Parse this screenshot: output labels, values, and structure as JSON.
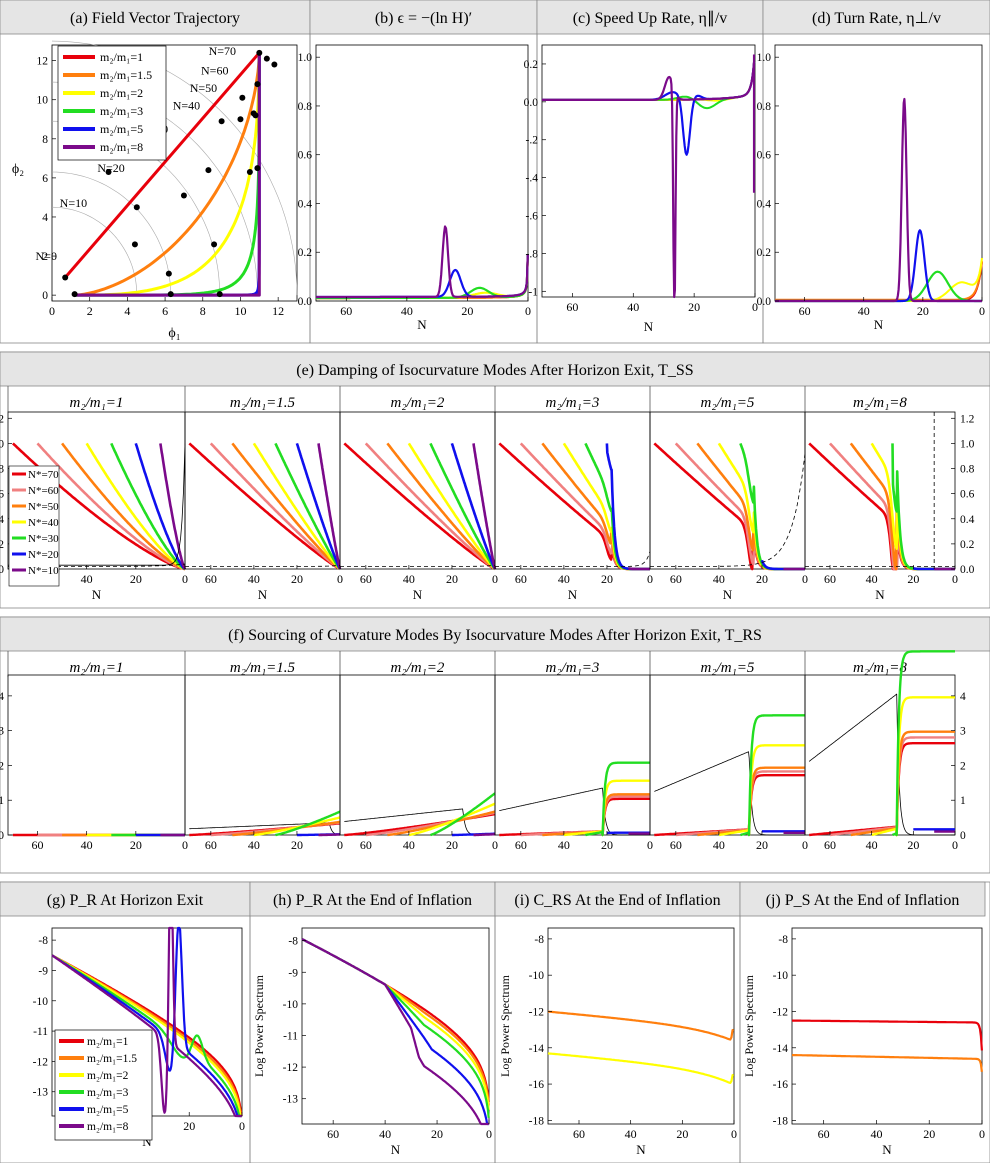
{
  "ratios": [
    "1",
    "1.5",
    "2",
    "3",
    "5",
    "8"
  ],
  "ratio_colors": [
    "#e8000b",
    "#ff7f0e",
    "#ffff00",
    "#22dd22",
    "#1010ee",
    "#7b0a8a"
  ],
  "nstar_labels": [
    "70",
    "60",
    "50",
    "40",
    "30",
    "20",
    "10"
  ],
  "nstar_colors": [
    "#e8000b",
    "#f08080",
    "#ff7f0e",
    "#ffff00",
    "#22dd22",
    "#1010ee",
    "#7b0a8a"
  ],
  "ratio_prefix": "m₂/m₁=",
  "nstar_prefix": "N*=",
  "row1": {
    "a": {
      "title": "(a)  Field Vector Trajectory",
      "xlabel": "ϕ₁",
      "ylabel": "ϕ₂",
      "xticks": [
        "0",
        "2",
        "4",
        "6",
        "8",
        "10",
        "12"
      ],
      "yticks": [
        "0",
        "2",
        "4",
        "6",
        "8",
        "10",
        "12"
      ],
      "n_labels": [
        "N=0",
        "N=10",
        "N=20",
        "N=30",
        "N=40",
        "N=50",
        "N=60",
        "N=70"
      ]
    },
    "b": {
      "title": "(b)  ϵ = −(ln H)′",
      "xlabel": "N",
      "xticks": [
        "60",
        "40",
        "20",
        "0"
      ],
      "yticks": [
        "0.0",
        "0.2",
        "0.4",
        "0.6",
        "0.8",
        "1.0"
      ]
    },
    "c": {
      "title": "(c)  Speed Up Rate, η∥/v",
      "xlabel": "N",
      "xticks": [
        "60",
        "40",
        "20",
        "0"
      ],
      "yticks": [
        "0.2",
        "0.0",
        "-.2",
        "-.4",
        "-.6",
        "-.8",
        "-1"
      ]
    },
    "d": {
      "title": "(d)  Turn Rate, η⊥/v",
      "xlabel": "N",
      "xticks": [
        "60",
        "40",
        "20",
        "0"
      ],
      "yticks": [
        "0.0",
        "0.2",
        "0.4",
        "0.6",
        "0.8",
        "1.0"
      ]
    }
  },
  "row2": {
    "title": "(e)  Damping of Isocurvature Modes After Horizon Exit,  T_SS",
    "xlabel": "N",
    "xticks": [
      "60",
      "40",
      "20",
      "0"
    ],
    "yticks": [
      "0.0",
      "0.2",
      "0.4",
      "0.6",
      "0.8",
      "1.0",
      "1.2"
    ]
  },
  "row3": {
    "title": "(f)  Sourcing of Curvature Modes By Isocurvature Modes After Horizon Exit,  T_RS",
    "xlabel": "N",
    "xticks": [
      "60",
      "40",
      "20",
      "0"
    ],
    "yticks": [
      "0",
      "1",
      "2",
      "3",
      "4"
    ]
  },
  "row4": {
    "g": {
      "title": "(g)  P_R At Horizon Exit",
      "xlabel": "N",
      "xticks": [
        "60",
        "40",
        "20",
        "0"
      ],
      "yticks": [
        "-8",
        "-9",
        "-10",
        "-11",
        "-12",
        "-13"
      ]
    },
    "h": {
      "title": "(h)  P_R At the End of Inflation",
      "xlabel": "N",
      "xticks": [
        "60",
        "40",
        "20",
        "0"
      ],
      "yticks": [
        "-8",
        "-9",
        "-10",
        "-11",
        "-12",
        "-13"
      ],
      "ylabel": "Log Power Spectrum"
    },
    "i": {
      "title": "(i)  C_RS At the End of Inflation",
      "xlabel": "N",
      "xticks": [
        "60",
        "40",
        "20",
        "0"
      ],
      "yticks": [
        "-8",
        "-10",
        "-12",
        "-14",
        "-16",
        "-18"
      ],
      "ylabel": "Log Power Spectrum"
    },
    "j": {
      "title": "(j)  P_S At the End of Inflation",
      "xlabel": "N",
      "xticks": [
        "60",
        "40",
        "20",
        "0"
      ],
      "yticks": [
        "-8",
        "-10",
        "-12",
        "-14",
        "-16",
        "-18"
      ],
      "ylabel": "Log Power Spectrum"
    }
  },
  "chart_data": [
    {
      "panel": "a",
      "type": "line",
      "title": "Field Vector Trajectory",
      "xlabel": "ϕ₁",
      "ylabel": "ϕ₂",
      "xlim": [
        0,
        13
      ],
      "ylim": [
        0,
        13
      ],
      "series": [
        {
          "name": "m2/m1=1",
          "x": [
            0.7,
            11.0
          ],
          "y": [
            0.9,
            12.4
          ]
        },
        {
          "name": "m2/m1=1.5",
          "x": [
            1.2,
            4,
            7,
            9.5,
            11.0
          ],
          "y": [
            0.05,
            1.3,
            4.2,
            8.2,
            12.4
          ]
        },
        {
          "name": "m2/m1=2",
          "x": [
            1.2,
            5,
            8,
            10,
            11.0
          ],
          "y": [
            0.02,
            0.6,
            2.8,
            7.0,
            12.4
          ]
        },
        {
          "name": "m2/m1=3",
          "x": [
            1.2,
            6,
            9,
            10.5,
            11.0
          ],
          "y": [
            0.0,
            0.15,
            1.5,
            6.5,
            12.4
          ]
        },
        {
          "name": "m2/m1=5",
          "x": [
            1.2,
            8,
            10.3,
            10.8,
            11.0
          ],
          "y": [
            0.0,
            0.02,
            0.8,
            7.0,
            12.4
          ]
        },
        {
          "name": "m2/m1=8",
          "x": [
            1.2,
            10,
            10.6,
            10.9,
            11.0
          ],
          "y": [
            0.0,
            0.02,
            0.5,
            7.0,
            12.4
          ]
        }
      ]
    },
    {
      "panel": "b",
      "type": "line",
      "title": "ϵ = −(ln H)′",
      "xlabel": "N",
      "xlim": [
        70,
        0
      ],
      "ylim": [
        0,
        1.05
      ],
      "series": [
        {
          "name": "m2/m1=1",
          "x": [
            70,
            30,
            10,
            3,
            1,
            0.2
          ],
          "y": [
            0.01,
            0.02,
            0.04,
            0.1,
            0.2,
            0.44
          ]
        },
        {
          "name": "m2/m1=8",
          "x": [
            70,
            32,
            28,
            26.5,
            24,
            10,
            0.2
          ],
          "y": [
            0.013,
            0.04,
            0.2,
            0.3,
            0.04,
            0.05,
            0.45
          ]
        }
      ]
    },
    {
      "panel": "c",
      "type": "line",
      "title": "Speed Up Rate",
      "xlabel": "N",
      "xlim": [
        70,
        0
      ],
      "ylim": [
        -1.03,
        0.3
      ],
      "series": [
        {
          "name": "m2/m1=5",
          "x": [
            70,
            30,
            25,
            22,
            18,
            5,
            1
          ],
          "y": [
            0.01,
            0.05,
            -0.02,
            -0.27,
            0.02,
            0.05,
            0.25
          ]
        },
        {
          "name": "m2/m1=8",
          "x": [
            70,
            28,
            27,
            26.5,
            26,
            20,
            1
          ],
          "y": [
            0.01,
            0.15,
            -0.5,
            -1.03,
            0.02,
            0.02,
            0.25
          ]
        }
      ]
    },
    {
      "panel": "d",
      "type": "line",
      "title": "Turn Rate",
      "xlabel": "N",
      "xlim": [
        70,
        0
      ],
      "ylim": [
        0,
        1.05
      ],
      "series": [
        {
          "name": "m2/m1=3",
          "x": [
            70,
            25,
            15,
            5
          ],
          "y": [
            0,
            0.01,
            0.12,
            0.01
          ]
        },
        {
          "name": "m2/m1=5",
          "x": [
            70,
            25,
            21,
            17
          ],
          "y": [
            0,
            0.02,
            0.29,
            0.02
          ]
        },
        {
          "name": "m2/m1=8",
          "x": [
            70,
            28,
            26,
            24
          ],
          "y": [
            0,
            0.02,
            0.83,
            0.02
          ]
        }
      ]
    },
    {
      "panel": "e",
      "type": "line",
      "title": "Damping of Isocurvature Modes After Horizon Exit, T_SS",
      "xlabel": "N",
      "xlim": [
        72,
        0
      ],
      "ylim": [
        0,
        1.25
      ],
      "subplots": [
        "m2/m1=1",
        "m2/m1=1.5",
        "m2/m1=2",
        "m2/m1=3",
        "m2/m1=5",
        "m2/m1=8"
      ],
      "series_by": "N*",
      "nstar": [
        70,
        60,
        50,
        40,
        30,
        20,
        10
      ],
      "start_value": 1.0
    },
    {
      "panel": "f",
      "type": "line",
      "title": "Sourcing of Curvature Modes By Isocurvature Modes After Horizon Exit, T_RS",
      "xlabel": "N",
      "xlim": [
        72,
        0
      ],
      "ylim": [
        0,
        4.6
      ],
      "subplots": [
        "m2/m1=1",
        "m2/m1=1.5",
        "m2/m1=2",
        "m2/m1=3",
        "m2/m1=5",
        "m2/m1=8"
      ],
      "final_values": {
        "m2/m1=1": 0.0,
        "m2/m1=1.5": 0.42,
        "m2/m1=2": 0.75,
        "m2/m1=3": 1.3,
        "m2/m1=5": 2.15,
        "m2/m1=8": 3.3
      },
      "black_peak": {
        "m2/m1=3": 1.35,
        "m2/m1=5": 2.4,
        "m2/m1=8": 4.05
      }
    },
    {
      "panel": "g",
      "type": "line",
      "title": "P_R At Horizon Exit",
      "xlabel": "N",
      "xlim": [
        72,
        0
      ],
      "ylim": [
        -13.8,
        -7.6
      ],
      "series": [
        {
          "name": "m2/m1=1",
          "x": [
            72,
            40,
            20,
            5,
            1
          ],
          "y": [
            -8.55,
            -9.2,
            -10.0,
            -11.5,
            -13.5
          ]
        },
        {
          "name": "m2/m1=8",
          "x": [
            72,
            35,
            29,
            27,
            24,
            10,
            4
          ],
          "y": [
            -8.7,
            -10.5,
            -12.4,
            -7.6,
            -11.3,
            -12.0,
            -13.7
          ]
        }
      ]
    },
    {
      "panel": "h",
      "type": "line",
      "title": "P_R At the End of Inflation",
      "xlabel": "N",
      "ylabel": "Log Power Spectrum",
      "xlim": [
        72,
        0
      ],
      "ylim": [
        -13.8,
        -7.6
      ],
      "series": [
        {
          "name": "m2/m1=1",
          "x": [
            72,
            40,
            10,
            1
          ],
          "y": [
            -8.45,
            -9.0,
            -10.5,
            -13.0
          ]
        },
        {
          "name": "m2/m1=8",
          "x": [
            72,
            35,
            27,
            10,
            1
          ],
          "y": [
            -8.45,
            -9.8,
            -10.8,
            -11.8,
            -13.5
          ]
        }
      ]
    },
    {
      "panel": "i",
      "type": "line",
      "title": "C_RS At the End of Inflation",
      "xlabel": "N",
      "ylabel": "Log Power Spectrum",
      "xlim": [
        72,
        0
      ],
      "ylim": [
        -18.2,
        -7.4
      ],
      "series": [
        {
          "name": "m2/m1=1.5",
          "x": [
            72,
            40,
            5,
            1,
            0.5
          ],
          "y": [
            -12.0,
            -12.4,
            -13.5,
            -13.6,
            -12.9
          ]
        },
        {
          "name": "m2/m1=2",
          "x": [
            72,
            40,
            5,
            1,
            0.5
          ],
          "y": [
            -14.3,
            -14.7,
            -15.9,
            -16.1,
            -15.6
          ]
        }
      ]
    },
    {
      "panel": "j",
      "type": "line",
      "title": "P_S At the End of Inflation",
      "xlabel": "N",
      "ylabel": "Log Power Spectrum",
      "xlim": [
        72,
        0
      ],
      "ylim": [
        -18.2,
        -7.4
      ],
      "series": [
        {
          "name": "m2/m1=1",
          "x": [
            72,
            5,
            1,
            0.3
          ],
          "y": [
            -12.5,
            -12.6,
            -12.9,
            -14.2
          ]
        },
        {
          "name": "m2/m1=1.5",
          "x": [
            72,
            5,
            1,
            0.3
          ],
          "y": [
            -14.4,
            -14.6,
            -14.6,
            -15.3
          ]
        }
      ]
    }
  ]
}
